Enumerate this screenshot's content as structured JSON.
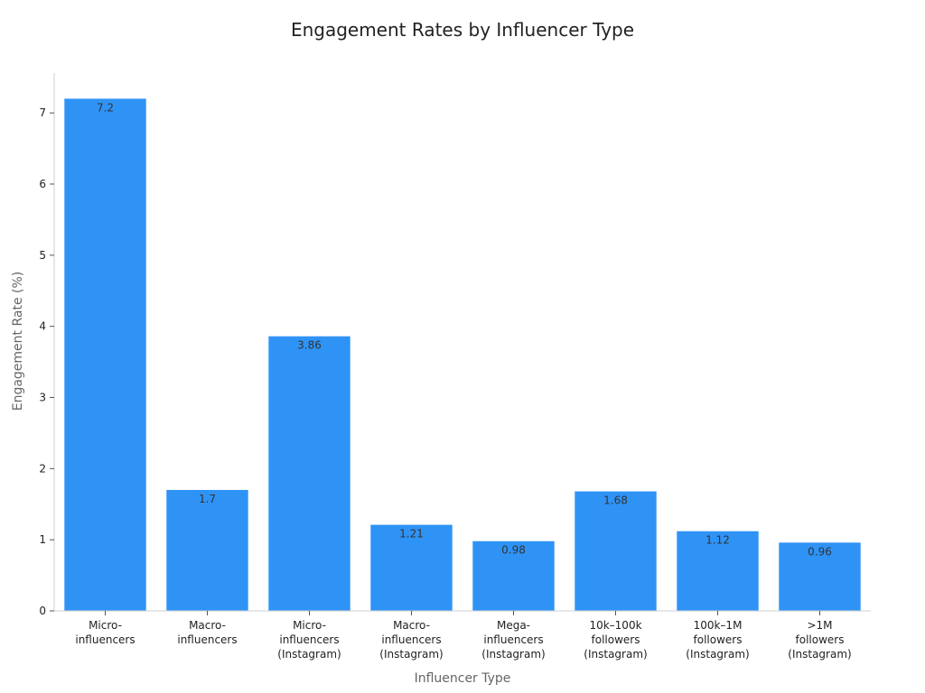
{
  "chart_data": {
    "type": "bar",
    "title": "Engagement Rates by Influencer Type",
    "xlabel": "Influencer Type",
    "ylabel": "Engagement Rate (%)",
    "categories": [
      "Micro-\ninfluencers",
      "Macro-\ninfluencers",
      "Micro-\ninfluencers\n(Instagram)",
      "Macro-\ninfluencers\n(Instagram)",
      "Mega-\ninfluencers\n(Instagram)",
      "10k–100k\nfollowers\n(Instagram)",
      "100k–1M\nfollowers\n(Instagram)",
      ">1M\nfollowers\n(Instagram)"
    ],
    "values": [
      7.2,
      1.7,
      3.86,
      1.21,
      0.98,
      1.68,
      1.12,
      0.96
    ],
    "data_labels": [
      "7.2",
      "1.7",
      "3.86",
      "1.21",
      "0.98",
      "1.68",
      "1.12",
      "0.96"
    ],
    "ylim": [
      0,
      7.56
    ],
    "yticks": [
      0,
      1,
      2,
      3,
      4,
      5,
      6,
      7
    ],
    "bar_color": "#2f93f6",
    "grid": false,
    "legend": "none"
  }
}
